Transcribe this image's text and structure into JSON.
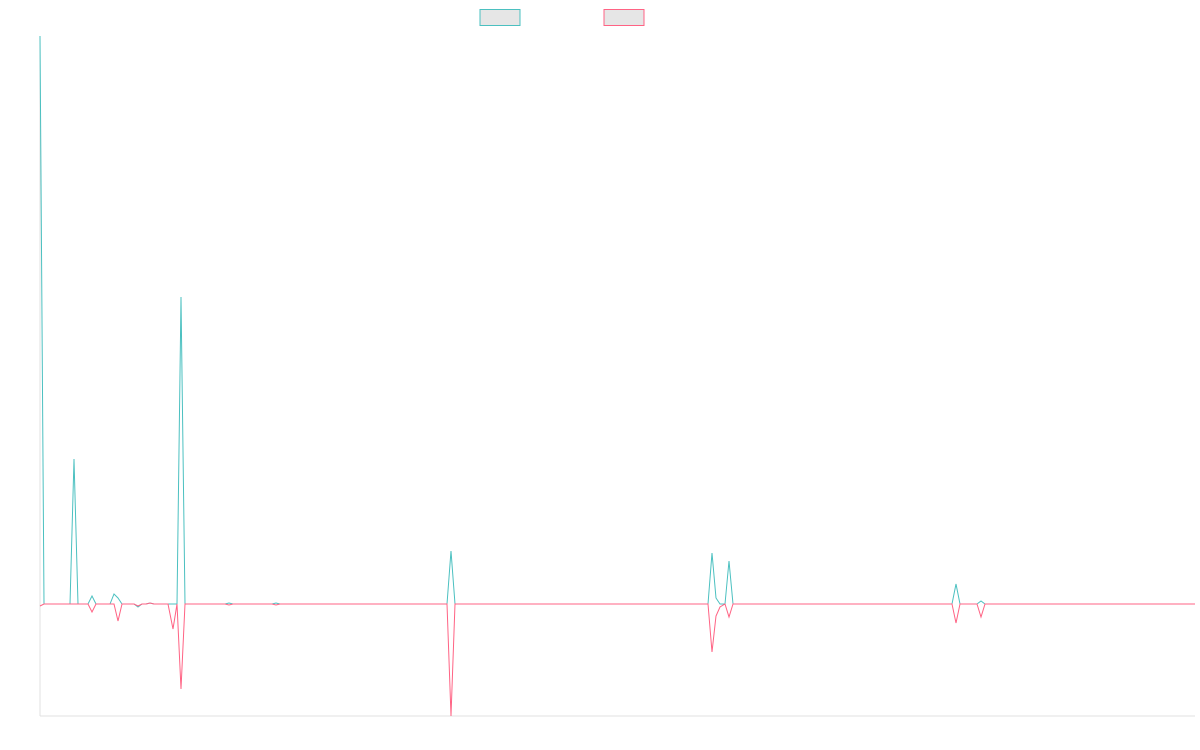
{
  "chart_data": {
    "type": "line",
    "xlim": [
      0,
      1155
    ],
    "ylim": [
      -112,
      568
    ],
    "grid": false,
    "legend": "top",
    "series": [
      {
        "color": "#4bc0c0",
        "x": [
          0,
          4,
          30,
          34,
          38,
          48,
          52,
          56,
          70,
          74,
          78,
          82,
          94,
          98,
          102,
          106,
          110,
          114,
          137,
          141,
          145,
          185,
          189,
          193,
          232,
          236,
          240,
          407,
          411,
          415,
          668,
          672,
          676,
          680,
          685,
          689,
          693,
          912,
          916,
          920,
          937,
          941,
          945,
          1155
        ],
        "values": [
          568,
          0,
          0,
          145,
          0,
          0,
          8,
          0,
          0,
          10,
          6,
          0,
          0,
          -3,
          0,
          0,
          1,
          0,
          0,
          307,
          0,
          0,
          1,
          0,
          0,
          1,
          0,
          0,
          53,
          0,
          0,
          51,
          6,
          0,
          0,
          43,
          0,
          0,
          20,
          0,
          0,
          3,
          0,
          0
        ]
      },
      {
        "color": "#ff6384",
        "x": [
          0,
          4,
          48,
          52,
          56,
          74,
          78,
          82,
          94,
          98,
          102,
          106,
          110,
          114,
          128,
          133,
          137,
          141,
          145,
          185,
          189,
          193,
          232,
          236,
          240,
          407,
          411,
          415,
          668,
          672,
          676,
          680,
          685,
          689,
          693,
          912,
          916,
          920,
          937,
          941,
          945,
          1155
        ],
        "values": [
          -2,
          0,
          0,
          -8,
          0,
          0,
          -17,
          0,
          0,
          -2,
          0,
          0,
          1,
          0,
          0,
          -25,
          0,
          -85,
          0,
          0,
          -1,
          0,
          0,
          -1,
          0,
          0,
          -112,
          0,
          0,
          -48,
          -12,
          -3,
          0,
          -13,
          0,
          0,
          -19,
          0,
          0,
          -13,
          0,
          0
        ]
      }
    ]
  }
}
